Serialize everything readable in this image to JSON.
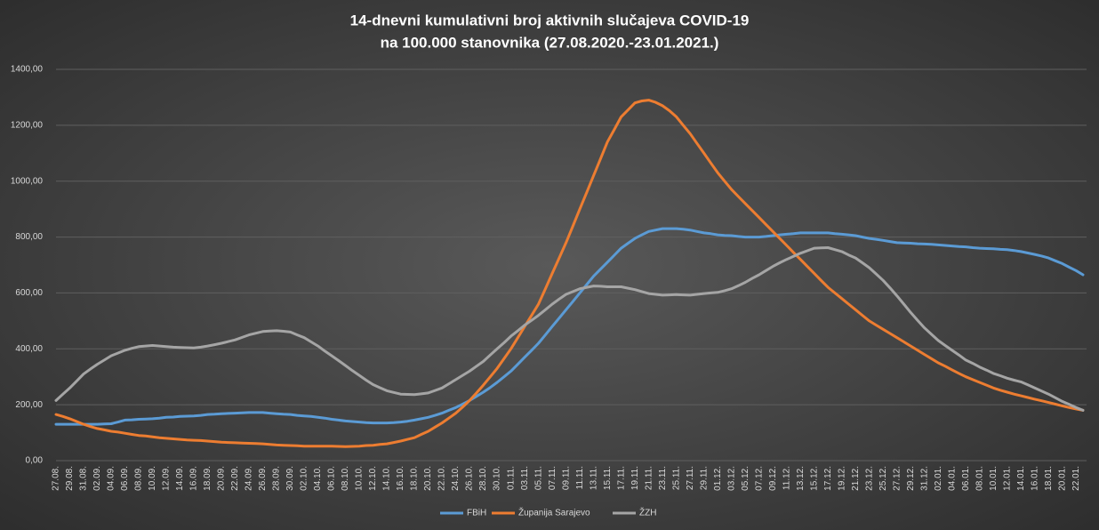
{
  "chart_data": {
    "type": "line",
    "title": [
      "14-dnevni  kumulativni  broj  aktivnih  slučajeva  COVID-19",
      "na  100.000  stanovnika  (27.08.2020.-23.01.2021.)"
    ],
    "categories": [
      "27.08.",
      null,
      "29.08.",
      null,
      "31.08.",
      null,
      "02.09.",
      null,
      "04.09.",
      null,
      "06.09.",
      null,
      "08.09.",
      null,
      "10.09.",
      null,
      "12.09.",
      null,
      "14.09.",
      null,
      "16.09.",
      null,
      "18.09.",
      null,
      "20.09.",
      null,
      "22.09.",
      null,
      "24.09.",
      null,
      "26.09.",
      null,
      "28.09.",
      null,
      "30.09.",
      null,
      "02.10.",
      null,
      "04.10.",
      null,
      "06.10.",
      null,
      "08.10.",
      null,
      "10.10.",
      null,
      "12.10.",
      null,
      "14.10.",
      null,
      "16.10.",
      null,
      "18.10.",
      null,
      "20.10.",
      null,
      "22.10.",
      null,
      "24.10.",
      null,
      "26.10.",
      null,
      "28.10.",
      null,
      "30.10.",
      null,
      "01.11.",
      null,
      "03.11.",
      null,
      "05.11.",
      null,
      "07.11.",
      null,
      "09.11.",
      null,
      "11.11.",
      null,
      "13.11.",
      null,
      "15.11.",
      null,
      "17.11.",
      null,
      "19.11.",
      null,
      "21.11.",
      null,
      "23.11.",
      null,
      "25.11.",
      null,
      "27.11.",
      null,
      "29.11.",
      null,
      "01.12.",
      null,
      "03.12.",
      null,
      "05.12.",
      null,
      "07.12.",
      null,
      "09.12.",
      null,
      "11.12.",
      null,
      "13.12.",
      null,
      "15.12.",
      null,
      "17.12.",
      null,
      "19.12.",
      null,
      "21.12.",
      null,
      "23.12.",
      null,
      "25.12.",
      null,
      "27.12.",
      null,
      "29.12.",
      null,
      "31.12.",
      null,
      "02.01.",
      null,
      "04.01.",
      null,
      "06.01.",
      null,
      "08.01.",
      null,
      "10.01.",
      null,
      "12.01.",
      null,
      "14.01.",
      null,
      "16.01.",
      null,
      "18.01.",
      null,
      "20.01.",
      null,
      "22.01.",
      null
    ],
    "series": [
      {
        "name": "FBiH",
        "color": "#5b9bd5",
        "values": [
          130,
          130,
          130,
          130,
          130,
          130,
          130,
          131,
          132,
          138,
          145,
          146,
          148,
          149,
          150,
          152,
          155,
          156,
          158,
          159,
          160,
          162,
          165,
          166,
          168,
          169,
          170,
          171,
          172,
          172,
          172,
          170,
          168,
          166,
          165,
          162,
          160,
          158,
          155,
          152,
          148,
          145,
          142,
          140,
          138,
          136,
          135,
          135,
          135,
          136,
          138,
          141,
          145,
          150,
          155,
          162,
          170,
          180,
          190,
          202,
          215,
          230,
          245,
          262,
          280,
          300,
          320,
          345,
          370,
          395,
          420,
          450,
          480,
          510,
          540,
          570,
          600,
          630,
          660,
          685,
          710,
          735,
          760,
          778,
          795,
          808,
          820,
          825,
          830,
          830,
          830,
          828,
          825,
          820,
          815,
          812,
          808,
          806,
          805,
          802,
          800,
          800,
          800,
          802,
          805,
          808,
          810,
          812,
          815,
          815,
          815,
          815,
          815,
          812,
          810,
          808,
          805,
          800,
          795,
          792,
          788,
          784,
          780,
          779,
          778,
          776,
          775,
          774,
          772,
          770,
          768,
          766,
          765,
          762,
          760,
          759,
          758,
          756,
          755,
          752,
          748,
          743,
          738,
          732,
          725,
          715,
          705,
          692,
          680,
          665
        ]
      },
      {
        "name": "Županija Sarajevo",
        "color": "#ed7d31",
        "values": [
          165,
          158,
          150,
          140,
          130,
          122,
          115,
          110,
          105,
          102,
          98,
          94,
          90,
          88,
          85,
          82,
          80,
          78,
          76,
          74,
          73,
          72,
          70,
          68,
          66,
          65,
          64,
          63,
          62,
          61,
          60,
          58,
          56,
          55,
          54,
          53,
          52,
          52,
          52,
          52,
          52,
          51,
          50,
          51,
          52,
          54,
          55,
          58,
          60,
          65,
          70,
          76,
          82,
          94,
          105,
          120,
          135,
          152,
          170,
          192,
          215,
          242,
          270,
          300,
          330,
          365,
          400,
          440,
          480,
          520,
          560,
          615,
          670,
          725,
          780,
          840,
          900,
          960,
          1020,
          1080,
          1140,
          1185,
          1230,
          1255,
          1280,
          1287,
          1290,
          1282,
          1270,
          1252,
          1230,
          1200,
          1170,
          1135,
          1100,
          1065,
          1030,
          1000,
          970,
          945,
          920,
          895,
          870,
          845,
          820,
          795,
          770,
          745,
          720,
          695,
          670,
          645,
          620,
          600,
          580,
          560,
          540,
          520,
          500,
          485,
          470,
          455,
          440,
          425,
          410,
          395,
          380,
          365,
          350,
          338,
          325,
          312,
          300,
          290,
          280,
          270,
          260,
          252,
          245,
          238,
          232,
          226,
          220,
          214,
          208,
          202,
          196,
          190,
          185,
          180
        ]
      },
      {
        "name": "ŽZH",
        "color": "#a5a5a5",
        "values": [
          215,
          238,
          260,
          285,
          310,
          328,
          345,
          360,
          375,
          385,
          395,
          402,
          408,
          410,
          412,
          410,
          408,
          406,
          405,
          404,
          403,
          406,
          410,
          415,
          420,
          426,
          432,
          441,
          450,
          456,
          462,
          464,
          465,
          463,
          460,
          450,
          440,
          425,
          410,
          392,
          375,
          358,
          340,
          322,
          305,
          288,
          272,
          261,
          250,
          244,
          238,
          237,
          236,
          239,
          242,
          251,
          260,
          275,
          290,
          305,
          320,
          338,
          355,
          378,
          400,
          422,
          445,
          465,
          485,
          502,
          520,
          540,
          560,
          578,
          595,
          605,
          615,
          620,
          625,
          624,
          622,
          622,
          622,
          617,
          612,
          605,
          598,
          595,
          592,
          593,
          594,
          593,
          592,
          595,
          598,
          600,
          602,
          608,
          615,
          626,
          638,
          652,
          665,
          680,
          695,
          708,
          720,
          731,
          742,
          751,
          760,
          761,
          762,
          755,
          748,
          736,
          725,
          708,
          690,
          668,
          645,
          618,
          590,
          560,
          530,
          502,
          475,
          452,
          430,
          412,
          395,
          378,
          360,
          348,
          335,
          324,
          312,
          304,
          295,
          288,
          282,
          271,
          260,
          249,
          238,
          225,
          212,
          201,
          190,
          180
        ]
      }
    ],
    "ylim": [
      0,
      1400
    ],
    "yticks": [
      {
        "value": 0,
        "label": "0,00"
      },
      {
        "value": 200,
        "label": "200,00"
      },
      {
        "value": 400,
        "label": "400,00"
      },
      {
        "value": 600,
        "label": "600,00"
      },
      {
        "value": 800,
        "label": "800,00"
      },
      {
        "value": 1000,
        "label": "1000,00"
      },
      {
        "value": 1200,
        "label": "1200,00"
      },
      {
        "value": 1400,
        "label": "1400,00"
      }
    ],
    "grid": true,
    "legend": "bottom"
  }
}
